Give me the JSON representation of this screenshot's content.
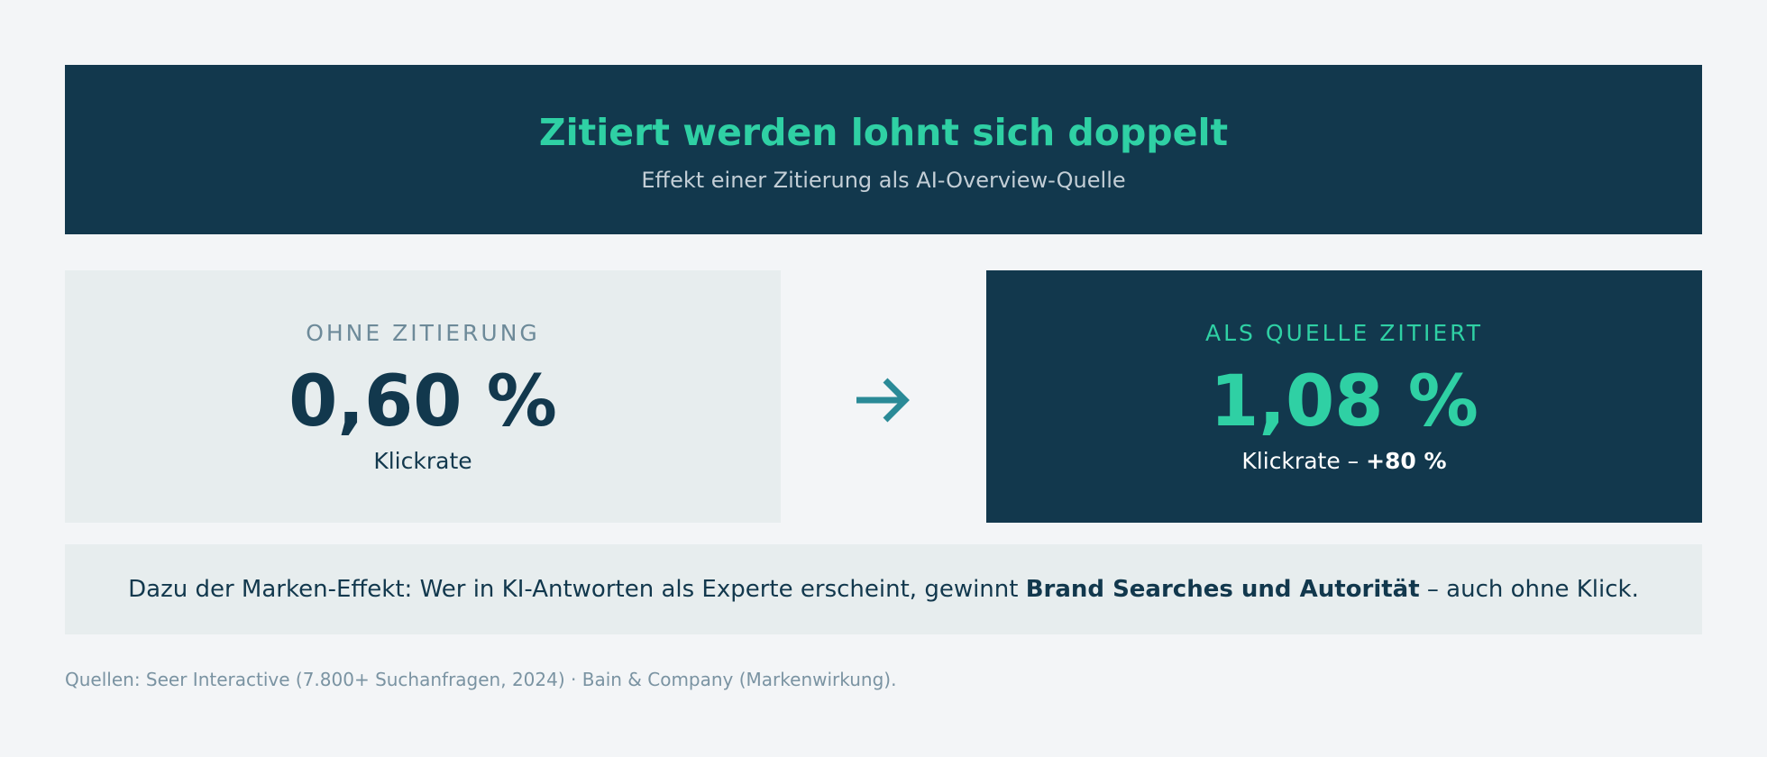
{
  "header": {
    "title": "Zitiert werden lohnt sich doppelt",
    "subtitle": "Effekt einer Zitierung als AI-Overview-Quelle"
  },
  "cards": {
    "left": {
      "kicker": "OHNE ZITIERUNG",
      "value": "0,60 %",
      "label": "Klickrate"
    },
    "right": {
      "kicker": "ALS QUELLE ZITIERT",
      "value": "1,08 %",
      "label_prefix": "Klickrate – ",
      "label_delta": "+80 %"
    }
  },
  "arrow": {
    "icon": "arrow-right-icon",
    "color": "#2a8a97"
  },
  "note": {
    "prefix": "Dazu der Marken-Effekt: Wer in KI-Antworten als Experte erscheint, gewinnt ",
    "strong": "Brand Searches und Autorität",
    "suffix": " – auch ohne Klick."
  },
  "source": "Quellen: Seer Interactive (7.800+ Suchanfragen, 2024) · Bain & Company (Markenwirkung).",
  "colors": {
    "background": "#f3f5f7",
    "navy": "#12384d",
    "accent": "#2fd0a4",
    "panel": "#e7edee"
  }
}
